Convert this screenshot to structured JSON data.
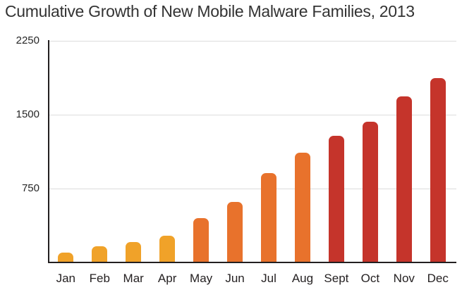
{
  "chart_data": {
    "type": "bar",
    "title": "Cumulative Growth of New Mobile Malware Families, 2013",
    "categories": [
      "Jan",
      "Feb",
      "Mar",
      "Apr",
      "May",
      "Jun",
      "Jul",
      "Aug",
      "Sept",
      "Oct",
      "Nov",
      "Dec"
    ],
    "values": [
      100,
      165,
      205,
      270,
      450,
      615,
      905,
      1115,
      1285,
      1430,
      1685,
      1875
    ],
    "bar_colors": [
      "#F0A229",
      "#F0A229",
      "#F0A229",
      "#F0A229",
      "#E8722C",
      "#E8722C",
      "#E8722C",
      "#E8722C",
      "#C5342B",
      "#C5342B",
      "#C5342B",
      "#C5342B"
    ],
    "yticks": [
      2250,
      1500,
      750
    ],
    "ylim": [
      0,
      2250
    ],
    "xlabel": "",
    "ylabel": "",
    "grid": true,
    "legend": false,
    "colors": {
      "grid": "#DCDCDC",
      "axis": "#231F20",
      "tick_text": "#262626",
      "title_text": "#333333"
    }
  }
}
